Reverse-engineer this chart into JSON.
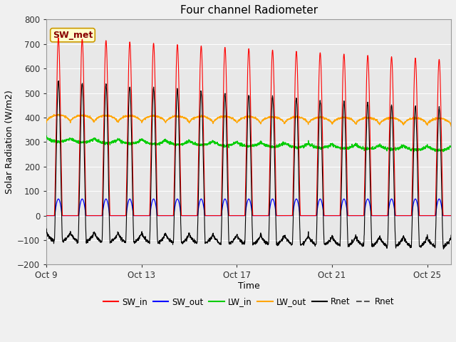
{
  "title": "Four channel Radiometer",
  "xlabel": "Time",
  "ylabel": "Solar Radiation (W/m2)",
  "ylim": [
    -200,
    800
  ],
  "yticks": [
    -200,
    -100,
    0,
    100,
    200,
    300,
    400,
    500,
    600,
    700,
    800
  ],
  "fig_bg_color": "#f0f0f0",
  "plot_bg_color": "#e8e8e8",
  "grid_color": "#ffffff",
  "sw_in_color": "#ff0000",
  "sw_out_color": "#0000ff",
  "lw_in_color": "#00cc00",
  "lw_out_color": "#ffa500",
  "rnet_color": "#000000",
  "rnet2_color": "#555555",
  "label_box_text": "SW_met",
  "label_box_facecolor": "#ffffcc",
  "label_box_edgecolor": "#cc9900",
  "label_text_color": "#880000",
  "n_days": 17,
  "pts_per_day": 144,
  "x_tick_labels": [
    "Oct 9",
    "Oct 13",
    "Oct 17",
    "Oct 21",
    "Oct 25"
  ],
  "x_tick_positions": [
    0,
    4,
    8,
    12,
    16
  ],
  "legend_entries": [
    "SW_in",
    "SW_out",
    "LW_in",
    "LW_out",
    "Rnet",
    "Rnet"
  ]
}
